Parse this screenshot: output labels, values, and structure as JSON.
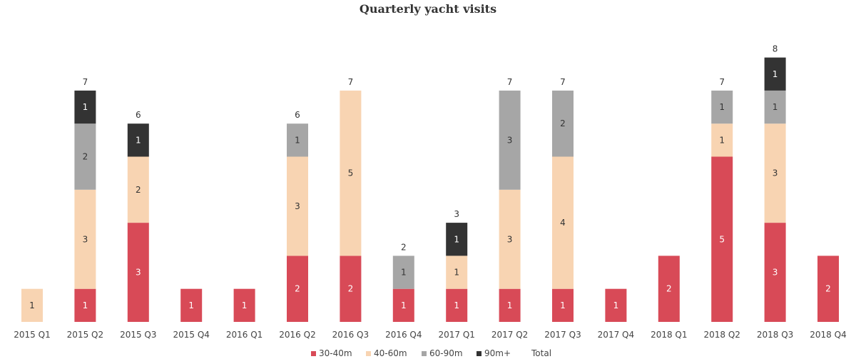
{
  "chart_data": {
    "type": "bar",
    "stacked": true,
    "title": "Quarterly yacht visits",
    "xlabel": "",
    "ylabel": "",
    "ylim": [
      0,
      8
    ],
    "grid": false,
    "legend_position": "bottom",
    "categories": [
      "2015 Q1",
      "2015 Q2",
      "2015 Q3",
      "2015 Q4",
      "2016 Q1",
      "2016 Q2",
      "2016 Q3",
      "2016 Q4",
      "2017 Q1",
      "2017 Q2",
      "2017 Q3",
      "2017 Q4",
      "2018 Q1",
      "2018 Q2",
      "2018 Q3",
      "2018 Q4"
    ],
    "series": [
      {
        "name": "30-40m",
        "color": "#d84a57",
        "label_color": "#ffffff",
        "values": [
          0,
          1,
          3,
          1,
          1,
          2,
          2,
          1,
          1,
          1,
          1,
          1,
          2,
          5,
          3,
          2
        ]
      },
      {
        "name": "40-60m",
        "color": "#f8d4b2",
        "label_color": "#333333",
        "values": [
          1,
          3,
          2,
          0,
          0,
          3,
          5,
          0,
          1,
          3,
          4,
          0,
          0,
          1,
          3,
          0
        ]
      },
      {
        "name": "60-90m",
        "color": "#a6a6a6",
        "label_color": "#333333",
        "values": [
          0,
          2,
          0,
          0,
          0,
          1,
          0,
          1,
          0,
          3,
          2,
          0,
          0,
          1,
          1,
          0
        ]
      },
      {
        "name": "90m+",
        "color": "#333333",
        "label_color": "#ffffff",
        "values": [
          0,
          1,
          1,
          0,
          0,
          0,
          0,
          0,
          1,
          0,
          0,
          0,
          0,
          0,
          1,
          0
        ]
      }
    ],
    "totals": [
      null,
      7,
      6,
      null,
      null,
      6,
      7,
      2,
      3,
      7,
      7,
      null,
      null,
      7,
      8,
      null
    ],
    "legend": [
      "30-40m",
      "40-60m",
      "60-90m",
      "90m+",
      "Total"
    ]
  }
}
